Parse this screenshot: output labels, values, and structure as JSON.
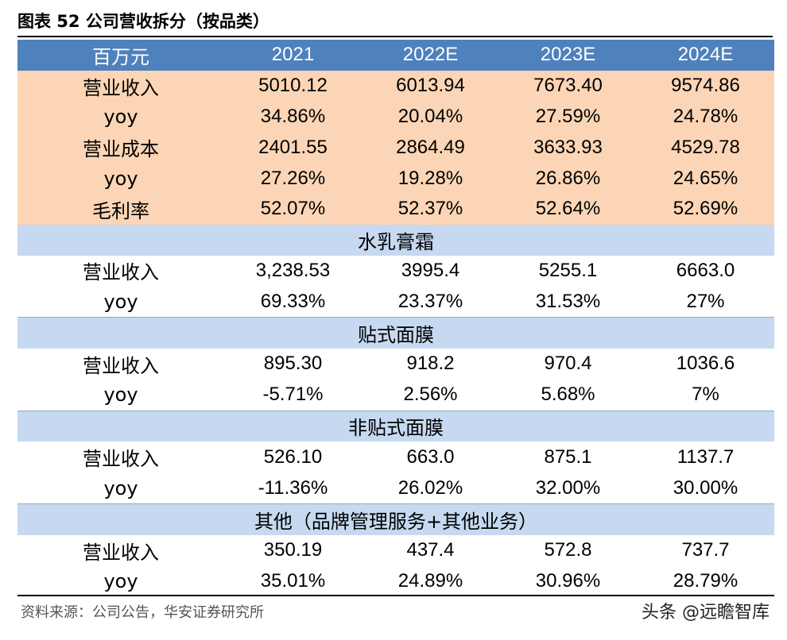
{
  "title": "图表 52 公司营收拆分（按品类）",
  "table": {
    "header": [
      "百万元",
      "2021",
      "2022E",
      "2023E",
      "2024E"
    ],
    "summary_rows": [
      {
        "label": "营业收入",
        "values": [
          "5010.12",
          "6013.94",
          "7673.40",
          "9574.86"
        ]
      },
      {
        "label": "yoy",
        "values": [
          "34.86%",
          "20.04%",
          "27.59%",
          "24.78%"
        ]
      },
      {
        "label": "营业成本",
        "values": [
          "2401.55",
          "2864.49",
          "3633.93",
          "4529.78"
        ]
      },
      {
        "label": "yoy",
        "values": [
          "27.26%",
          "19.28%",
          "26.86%",
          "24.65%"
        ]
      },
      {
        "label": "毛利率",
        "values": [
          "52.07%",
          "52.37%",
          "52.64%",
          "52.69%"
        ]
      }
    ],
    "sections": [
      {
        "name": "水乳膏霜",
        "rows": [
          {
            "label": "营业收入",
            "values": [
              "3,238.53",
              "3995.4",
              "5255.1",
              "6663.0"
            ]
          },
          {
            "label": "yoy",
            "values": [
              "69.33%",
              "23.37%",
              "31.53%",
              "27%"
            ]
          }
        ]
      },
      {
        "name": "贴式面膜",
        "rows": [
          {
            "label": "营业收入",
            "values": [
              "895.30",
              "918.2",
              "970.4",
              "1036.6"
            ]
          },
          {
            "label": "yoy",
            "values": [
              "-5.71%",
              "2.56%",
              "5.68%",
              "7%"
            ]
          }
        ]
      },
      {
        "name": "非贴式面膜",
        "rows": [
          {
            "label": "营业收入",
            "values": [
              "526.10",
              "663.0",
              "875.1",
              "1137.7"
            ]
          },
          {
            "label": "yoy",
            "values": [
              "-11.36%",
              "26.02%",
              "32.00%",
              "30.00%"
            ]
          }
        ]
      },
      {
        "name": "其他（品牌管理服务+其他业务）",
        "rows": [
          {
            "label": "营业收入",
            "values": [
              "350.19",
              "437.4",
              "572.8",
              "737.7"
            ]
          },
          {
            "label": "yoy",
            "values": [
              "35.01%",
              "24.89%",
              "30.96%",
              "28.79%"
            ]
          }
        ]
      }
    ]
  },
  "source": "资料来源：公司公告，华安证券研究所",
  "watermark": "头条 @远瞻智库",
  "colors": {
    "header_bg": "#4f81bd",
    "summary_bg": "#fbd5b5",
    "section_bg": "#c6d9f0"
  }
}
